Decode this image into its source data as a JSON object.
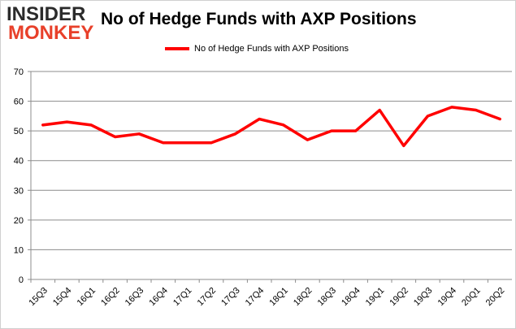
{
  "logo": {
    "line1": "INSIDER",
    "line2": "MONKEY"
  },
  "chart_data": {
    "type": "line",
    "title": "No of Hedge Funds with AXP Positions",
    "xlabel": "",
    "ylabel": "",
    "categories": [
      "15Q3",
      "15Q4",
      "16Q1",
      "16Q2",
      "16Q3",
      "16Q4",
      "17Q1",
      "17Q2",
      "17Q3",
      "17Q4",
      "18Q1",
      "18Q2",
      "18Q3",
      "18Q4",
      "19Q1",
      "19Q2",
      "19Q3",
      "19Q4",
      "20Q1",
      "20Q2"
    ],
    "series": [
      {
        "name": "No of Hedge Funds with AXP Positions",
        "values": [
          52,
          53,
          52,
          48,
          49,
          46,
          46,
          46,
          49,
          54,
          52,
          47,
          50,
          50,
          57,
          45,
          55,
          58,
          57,
          54
        ],
        "color": "#ff0000"
      }
    ],
    "ylim": [
      0,
      70
    ],
    "yticks": [
      0,
      10,
      20,
      30,
      40,
      50,
      60,
      70
    ],
    "grid": true,
    "legend": "top"
  }
}
